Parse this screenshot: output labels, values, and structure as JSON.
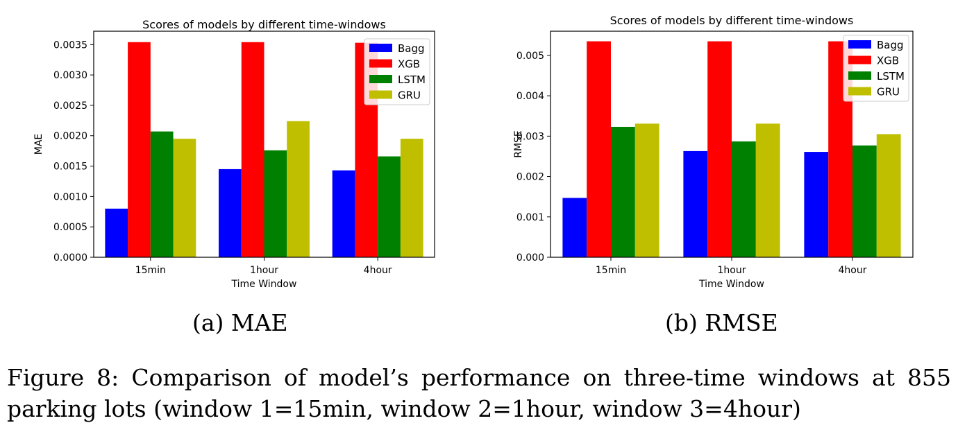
{
  "chart_data": [
    {
      "type": "bar",
      "title": "Scores of models by different time-windows",
      "xlabel": "Time Window",
      "ylabel": "MAE",
      "categories": [
        "15min",
        "1hour",
        "4hour"
      ],
      "ylim": [
        0,
        0.00372
      ],
      "yticks": [
        "0.0000",
        "0.0005",
        "0.0010",
        "0.0015",
        "0.0020",
        "0.0025",
        "0.0030",
        "0.0035"
      ],
      "ytick_values": [
        0,
        0.0005,
        0.001,
        0.0015,
        0.002,
        0.0025,
        0.003,
        0.0035
      ],
      "legend": "top-right",
      "grid": false,
      "series": [
        {
          "name": "Bagg",
          "color": "#0000ff",
          "values": [
            0.0008,
            0.00145,
            0.00143
          ]
        },
        {
          "name": "XGB",
          "color": "#ff0000",
          "values": [
            0.00354,
            0.00354,
            0.00353
          ]
        },
        {
          "name": "LSTM",
          "color": "#008000",
          "values": [
            0.00207,
            0.00176,
            0.00166
          ]
        },
        {
          "name": "GRU",
          "color": "#bfbf00",
          "values": [
            0.00195,
            0.00224,
            0.00195
          ]
        }
      ]
    },
    {
      "type": "bar",
      "title": "Scores of models by different time-windows",
      "xlabel": "Time Window",
      "ylabel": "RMSE",
      "categories": [
        "15min",
        "1hour",
        "4hour"
      ],
      "ylim": [
        0,
        0.0056
      ],
      "yticks": [
        "0.000",
        "0.001",
        "0.002",
        "0.003",
        "0.004",
        "0.005"
      ],
      "ytick_values": [
        0,
        0.001,
        0.002,
        0.003,
        0.004,
        0.005
      ],
      "legend": "top-right",
      "grid": false,
      "series": [
        {
          "name": "Bagg",
          "color": "#0000ff",
          "values": [
            0.00147,
            0.00263,
            0.00261
          ]
        },
        {
          "name": "XGB",
          "color": "#ff0000",
          "values": [
            0.00535,
            0.00535,
            0.00535
          ]
        },
        {
          "name": "LSTM",
          "color": "#008000",
          "values": [
            0.00323,
            0.00287,
            0.00277
          ]
        },
        {
          "name": "GRU",
          "color": "#bfbf00",
          "values": [
            0.00331,
            0.00331,
            0.00305
          ]
        }
      ]
    }
  ],
  "subcaptions": [
    "(a) MAE",
    "(b) RMSE"
  ],
  "caption": "Figure 8: Comparison of model’s performance on three-time windows at 855 parking lots (window 1=15min, window 2=1hour, window 3=4hour)"
}
